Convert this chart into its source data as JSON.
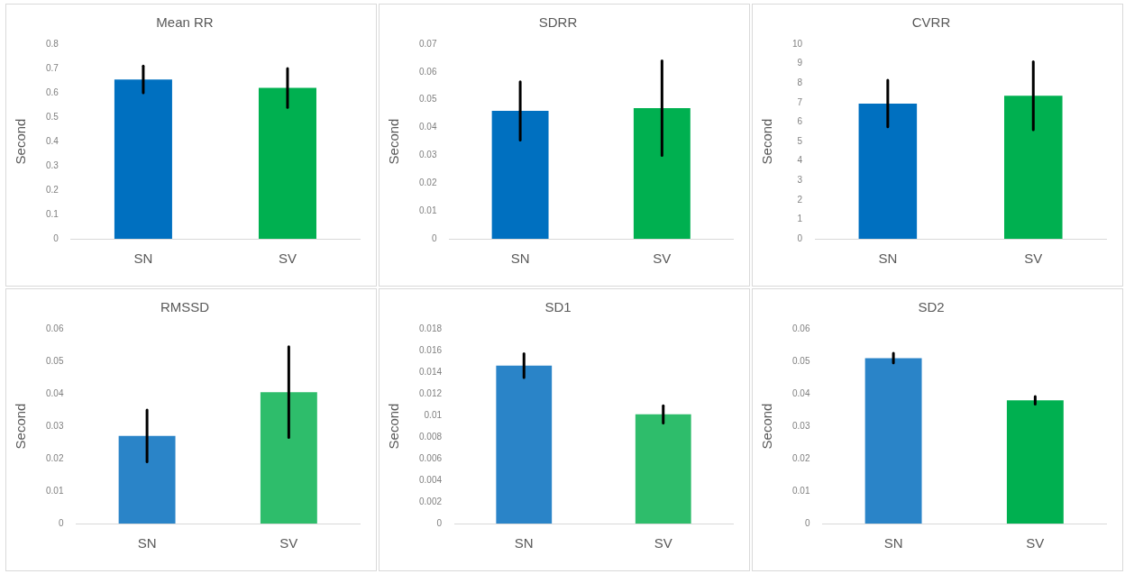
{
  "chart_data": [
    {
      "type": "bar",
      "title": "Mean RR",
      "ylabel": "Second",
      "categories": [
        "SN",
        "SV"
      ],
      "values": [
        0.655,
        0.62
      ],
      "colors": [
        "#0070c0",
        "#00b050"
      ],
      "errors": [
        0.055,
        0.08
      ],
      "ylim": [
        0,
        0.8
      ],
      "yticks": [
        0,
        0.1,
        0.2,
        0.3,
        0.4,
        0.5,
        0.6,
        0.7,
        0.8
      ],
      "legend": false
    },
    {
      "type": "bar",
      "title": "SDRR",
      "ylabel": "Second",
      "categories": [
        "SN",
        "SV"
      ],
      "values": [
        0.046,
        0.047
      ],
      "colors": [
        "#0070c0",
        "#00b050"
      ],
      "errors": [
        0.0105,
        0.017
      ],
      "ylim": [
        0,
        0.07
      ],
      "yticks": [
        0,
        0.01,
        0.02,
        0.03,
        0.04,
        0.05,
        0.06,
        0.07
      ],
      "legend": false
    },
    {
      "type": "bar",
      "title": "CVRR",
      "ylabel": "Second",
      "categories": [
        "SN",
        "SV"
      ],
      "values": [
        6.95,
        7.35
      ],
      "colors": [
        "#0070c0",
        "#00b050"
      ],
      "errors": [
        1.2,
        1.75
      ],
      "ylim": [
        0,
        10
      ],
      "yticks": [
        0,
        1,
        2,
        3,
        4,
        5,
        6,
        7,
        8,
        9,
        10
      ],
      "legend": false
    },
    {
      "type": "bar",
      "title": "RMSSD",
      "ylabel": "Second",
      "categories": [
        "SN",
        "SV"
      ],
      "values": [
        0.027,
        0.0405
      ],
      "colors": [
        "#2a84c8",
        "#2ebd6b"
      ],
      "errors": [
        0.008,
        0.014
      ],
      "ylim": [
        0,
        0.06
      ],
      "yticks": [
        0,
        0.01,
        0.02,
        0.03,
        0.04,
        0.05,
        0.06
      ],
      "legend": false
    },
    {
      "type": "bar",
      "title": "SD1",
      "ylabel": "Second",
      "categories": [
        "SN",
        "SV"
      ],
      "values": [
        0.0146,
        0.0101
      ],
      "colors": [
        "#2a84c8",
        "#2ebd6b"
      ],
      "errors": [
        0.0011,
        0.0008
      ],
      "ylim": [
        0,
        0.018
      ],
      "yticks": [
        0,
        0.002,
        0.004,
        0.006,
        0.008,
        0.01,
        0.012,
        0.014,
        0.016,
        0.018
      ],
      "legend": false
    },
    {
      "type": "bar",
      "title": "SD2",
      "ylabel": "Second",
      "categories": [
        "SN",
        "SV"
      ],
      "values": [
        0.051,
        0.038
      ],
      "colors": [
        "#2a84c8",
        "#00b050"
      ],
      "errors": [
        0.0015,
        0.0012
      ],
      "ylim": [
        0,
        0.06
      ],
      "yticks": [
        0,
        0.01,
        0.02,
        0.03,
        0.04,
        0.05,
        0.06
      ],
      "legend": false
    }
  ]
}
